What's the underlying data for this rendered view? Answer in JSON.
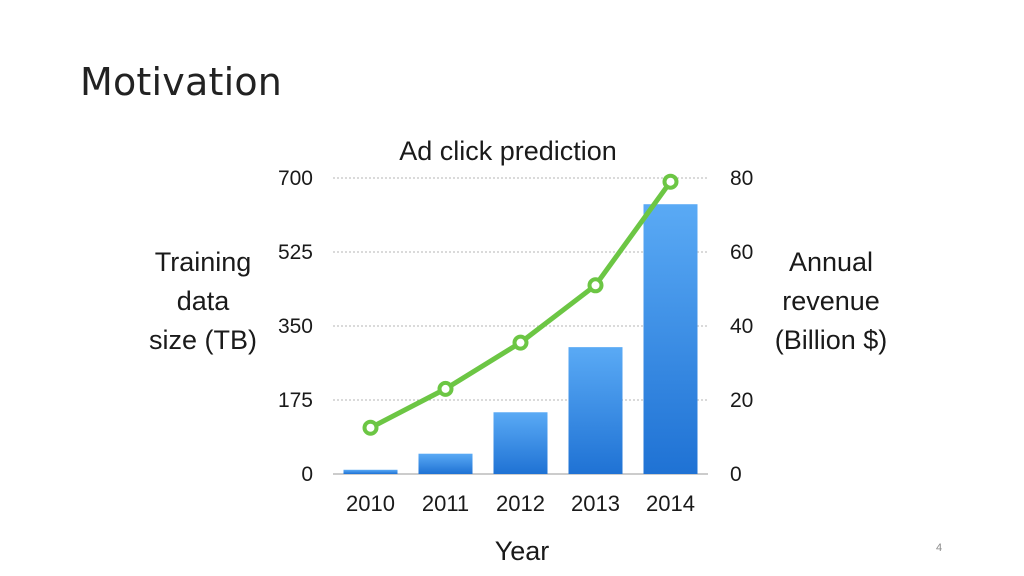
{
  "slide": {
    "title": "Motivation",
    "page_number": "4"
  },
  "chart_data": {
    "type": "bar",
    "title": "Ad click prediction",
    "xlabel": "Year",
    "ylabel": [
      "Training",
      "data",
      "size (TB)"
    ],
    "y2label": [
      "Annual",
      "revenue",
      "(Billion $)"
    ],
    "categories": [
      "2010",
      "2011",
      "2012",
      "2013",
      "2014"
    ],
    "ylim": [
      0,
      700
    ],
    "yticks": [
      "0",
      "175",
      "350",
      "525",
      "700"
    ],
    "y2lim": [
      0,
      80
    ],
    "y2ticks": [
      "0",
      "20",
      "40",
      "60",
      "80"
    ],
    "grid": true,
    "series": [
      {
        "axis": "left",
        "type": "bar",
        "values": [
          10,
          48,
          146,
          300,
          638
        ],
        "color_top": "#5aaaf5",
        "color_bottom": "#1f72d4"
      },
      {
        "axis": "right",
        "type": "line",
        "values": [
          12.5,
          23,
          35.5,
          51,
          79
        ],
        "color": "#6cc644"
      }
    ]
  }
}
